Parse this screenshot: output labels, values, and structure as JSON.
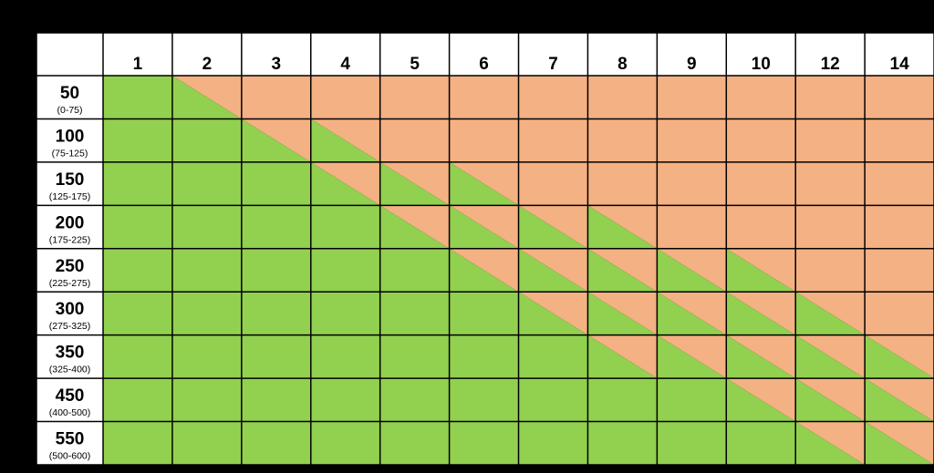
{
  "chart_data": {
    "type": "table",
    "columns": [
      "1",
      "2",
      "3",
      "4",
      "5",
      "6",
      "7",
      "8",
      "9",
      "10",
      "12",
      "14"
    ],
    "rows": [
      {
        "label": "50",
        "range": "(0-75)"
      },
      {
        "label": "100",
        "range": "(75-125)"
      },
      {
        "label": "150",
        "range": "(125-175)"
      },
      {
        "label": "200",
        "range": "(175-225)"
      },
      {
        "label": "250",
        "range": "(225-275)"
      },
      {
        "label": "300",
        "range": "(275-325)"
      },
      {
        "label": "350",
        "range": "(325-400)"
      },
      {
        "label": "450",
        "range": "(400-500)"
      },
      {
        "label": "550",
        "range": "(500-600)"
      }
    ],
    "cells": [
      [
        "g",
        "d",
        "o",
        "o",
        "o",
        "o",
        "o",
        "o",
        "o",
        "o",
        "o",
        "o"
      ],
      [
        "g",
        "g",
        "d",
        "t",
        "o",
        "o",
        "o",
        "o",
        "o",
        "o",
        "o",
        "o"
      ],
      [
        "g",
        "g",
        "g",
        "d",
        "t",
        "t",
        "o",
        "o",
        "o",
        "o",
        "o",
        "o"
      ],
      [
        "g",
        "g",
        "g",
        "g",
        "d",
        "t",
        "t",
        "t",
        "o",
        "o",
        "o",
        "o"
      ],
      [
        "g",
        "g",
        "g",
        "g",
        "g",
        "d",
        "t",
        "t",
        "t",
        "t",
        "o",
        "o"
      ],
      [
        "g",
        "g",
        "g",
        "g",
        "g",
        "g",
        "d",
        "t",
        "t",
        "t",
        "t",
        "o"
      ],
      [
        "g",
        "g",
        "g",
        "g",
        "g",
        "g",
        "g",
        "d",
        "t",
        "t",
        "t",
        "t"
      ],
      [
        "g",
        "g",
        "g",
        "g",
        "g",
        "g",
        "g",
        "g",
        "g",
        "d",
        "t",
        "t"
      ],
      [
        "g",
        "g",
        "g",
        "g",
        "g",
        "g",
        "g",
        "g",
        "g",
        "g",
        "d",
        "t"
      ]
    ],
    "colors": {
      "green": "#92D050",
      "orange": "#F4B183",
      "header": "#FFFFFF",
      "line": "#000000",
      "background": "#000000"
    }
  }
}
